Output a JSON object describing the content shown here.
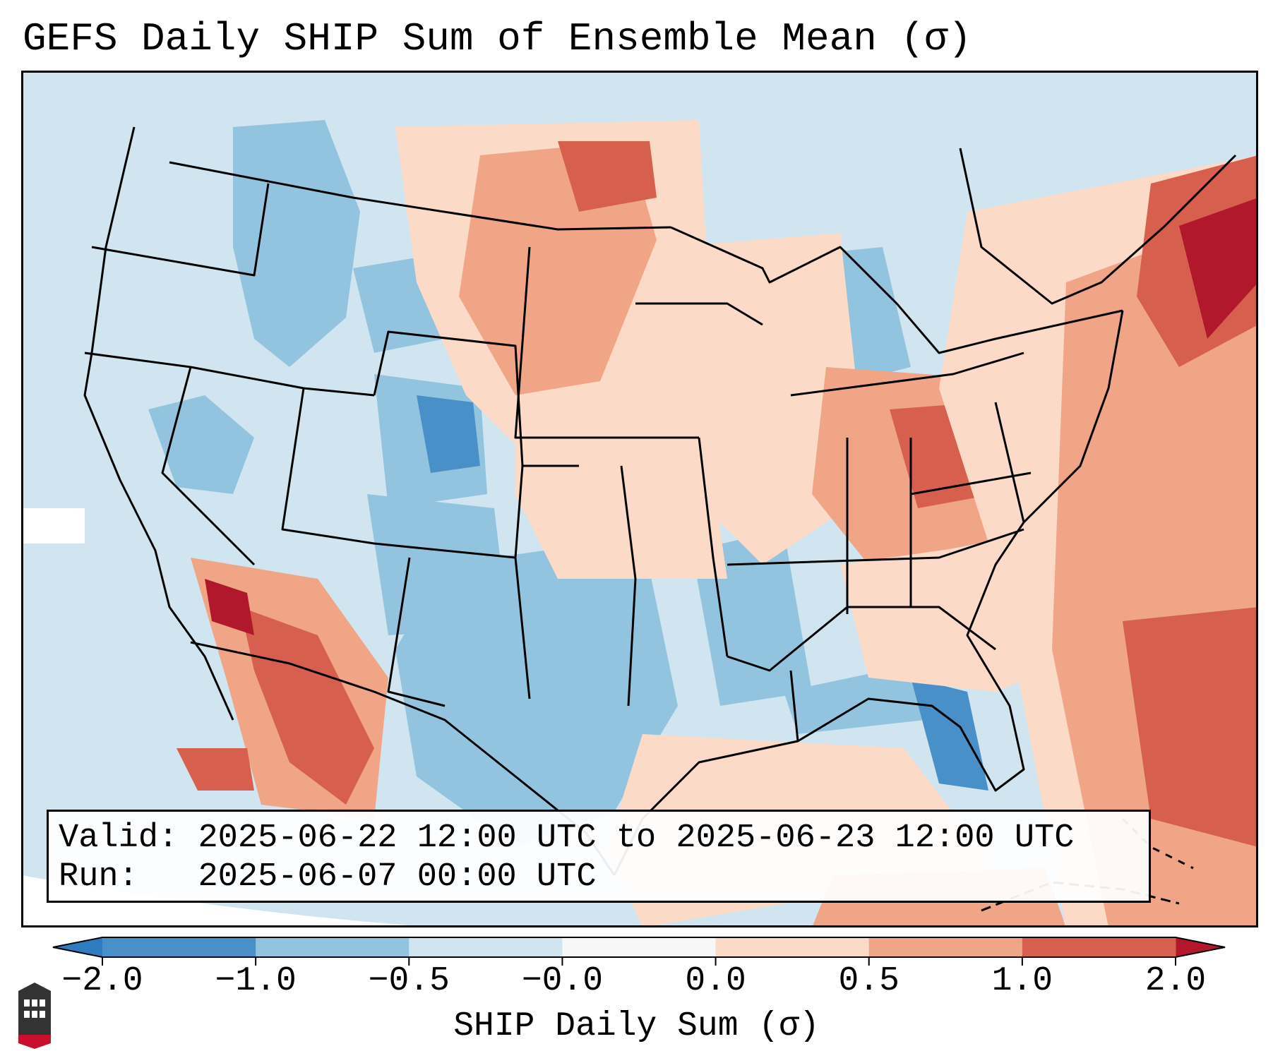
{
  "title": "GEFS Daily SHIP Sum of Ensemble Mean (σ)",
  "info": {
    "valid_label": "Valid:",
    "valid_value": "2025-06-22 12:00 UTC to 2025-06-23 12:00 UTC",
    "run_label": "Run:",
    "run_value": "2025-06-07 00:00 UTC"
  },
  "colorbar": {
    "label": "SHIP Daily Sum (σ)",
    "ticks": [
      "−2.0",
      "−1.0",
      "−0.5",
      "−0.0",
      "0.0",
      "0.5",
      "1.0",
      "2.0"
    ],
    "bins": [
      {
        "color": "#4a90c8"
      },
      {
        "color": "#93c4df"
      },
      {
        "color": "#d1e5f0"
      },
      {
        "color": "#f7f7f7"
      },
      {
        "color": "#fbdac8"
      },
      {
        "color": "#f0a586"
      },
      {
        "color": "#d6604d"
      }
    ],
    "under_color": "#2f7bbf",
    "over_color": "#b2182b"
  },
  "map": {
    "ocean_color": "#d1e5f0",
    "border_color": "#000000",
    "regions": [
      {
        "name": "pacific-northwest",
        "anomaly": "-0.5 to -0.0"
      },
      {
        "name": "northern-rockies",
        "anomaly": "-1.0 to -0.5"
      },
      {
        "name": "colorado-rockies",
        "anomaly": "-2.0 to -1.0"
      },
      {
        "name": "texas-southern-plains",
        "anomaly": "-1.0 to -0.5"
      },
      {
        "name": "florida-peninsula",
        "anomaly": "-2.0 to -1.0"
      },
      {
        "name": "northern-plains",
        "anomaly": "0.5 to 1.0"
      },
      {
        "name": "ohio-valley",
        "anomaly": "1.0 to 2.0"
      },
      {
        "name": "new-england",
        "anomaly": "> 2.0"
      },
      {
        "name": "western-atlantic",
        "anomaly": "0.5 to 2.0"
      },
      {
        "name": "sierra-madre-mexico",
        "anomaly": "1.0 to 2.0"
      }
    ]
  }
}
